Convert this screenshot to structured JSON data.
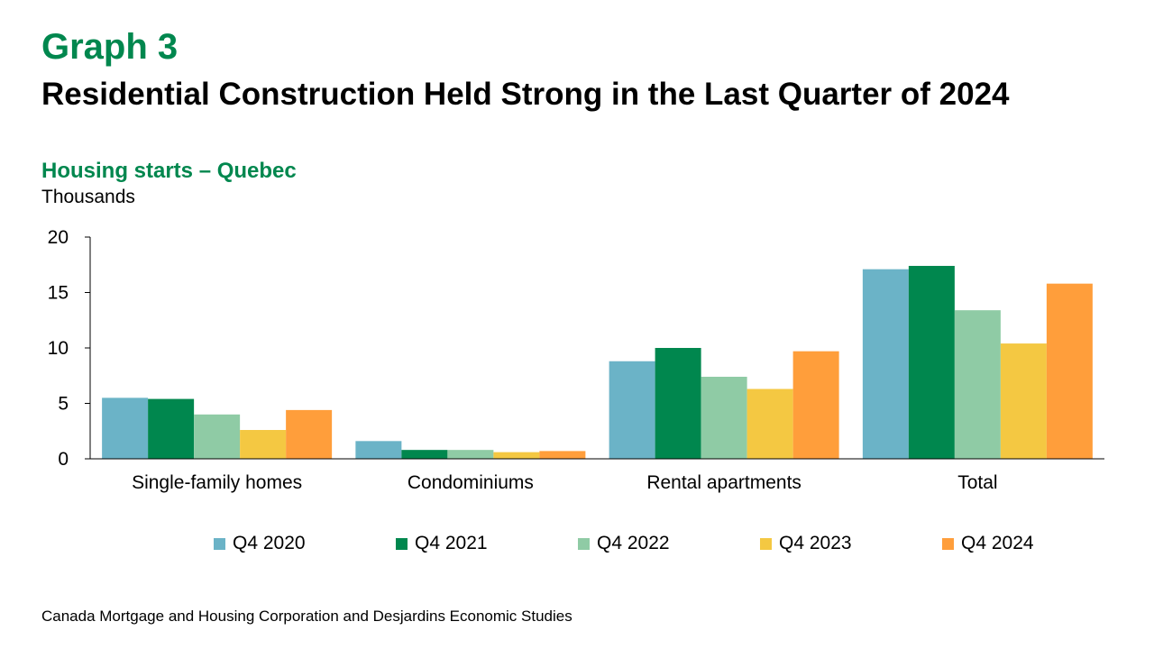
{
  "header": {
    "graph_number": "Graph 3",
    "title": "Residential Construction Held Strong in the Last Quarter of 2024"
  },
  "chart_data": {
    "type": "bar",
    "title": "Housing starts – Quebec",
    "ylabel": "Thousands",
    "categories": [
      "Single-family homes",
      "Condominiums",
      "Rental apartments",
      "Total"
    ],
    "ylim": [
      0,
      20
    ],
    "yticks": [
      "0",
      "5",
      "10",
      "15",
      "20"
    ],
    "grid": false,
    "legend_position": "bottom",
    "series": [
      {
        "name": "Q4 2020",
        "color": "#6BB3C7",
        "values": [
          5.5,
          1.6,
          8.8,
          17.1
        ]
      },
      {
        "name": "Q4 2021",
        "color": "#00874E",
        "values": [
          5.4,
          0.8,
          10.0,
          17.4
        ]
      },
      {
        "name": "Q4 2022",
        "color": "#8FCBA5",
        "values": [
          4.0,
          0.8,
          7.4,
          13.4
        ]
      },
      {
        "name": "Q4 2023",
        "color": "#F4C842",
        "values": [
          2.6,
          0.6,
          6.3,
          10.4
        ]
      },
      {
        "name": "Q4 2024",
        "color": "#FF9E3B",
        "values": [
          4.4,
          0.7,
          9.7,
          15.8
        ]
      }
    ]
  },
  "source": "Canada Mortgage and Housing Corporation and Desjardins Economic Studies"
}
